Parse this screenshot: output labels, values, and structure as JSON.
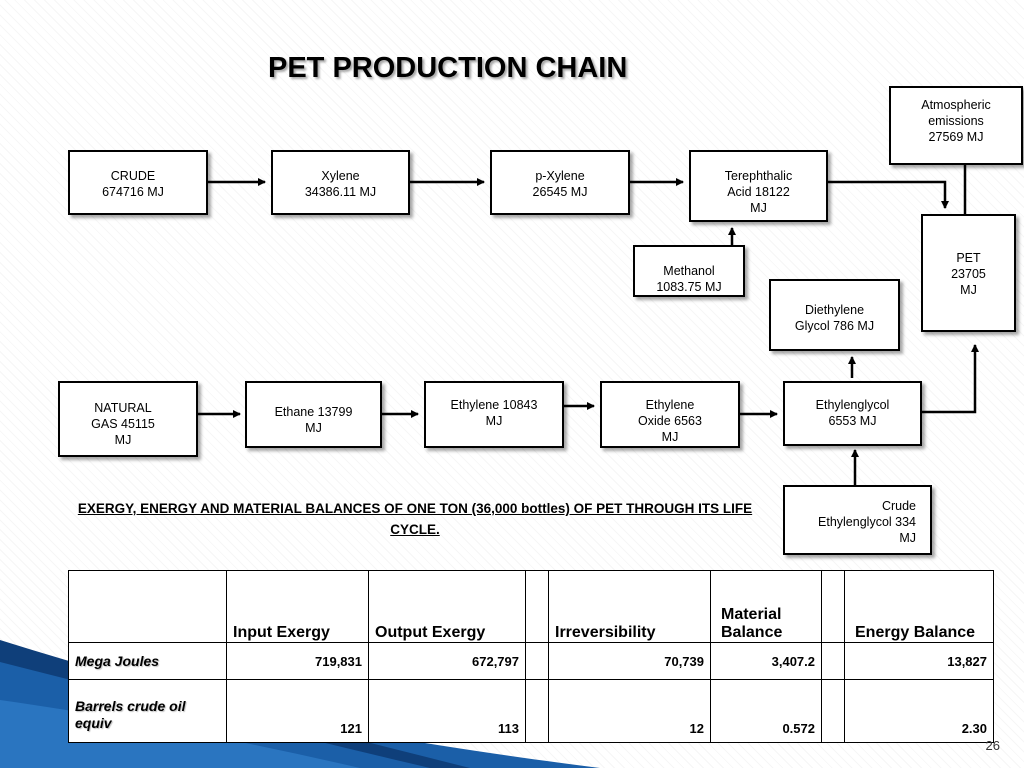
{
  "title": "PET PRODUCTION CHAIN",
  "nodes": {
    "crude": "CRUDE\n674716 MJ",
    "xylene": "Xylene\n34386.11 MJ",
    "pxylene": "p-Xylene\n26545 MJ",
    "terephthalic": "Terephthalic\nAcid 18122\nMJ",
    "atmospheric": "Atmospheric\nemissions\n27569  MJ",
    "pet": "PET\n23705\nMJ",
    "methanol": "Methanol\n1083.75 MJ",
    "diethylene": "Diethylene\nGlycol 786 MJ",
    "natural_gas": "NATURAL\nGAS 45115\nMJ",
    "ethane": "Ethane 13799\nMJ",
    "ethylene": "Ethylene 10843\nMJ",
    "ethylene_oxide": "Ethylene\nOxide 6563\nMJ",
    "ethylenglycol": "Ethylenglycol\n6553 MJ",
    "crude_ethylenglycol": "Crude\nEthylenglycol  334\nMJ"
  },
  "caption": "EXERGY, ENERGY AND MATERIAL BALANCES OF ONE TON (36,000 bottles) OF PET THROUGH ITS LIFE CYCLE.",
  "table": {
    "headers": [
      "",
      "Input Exergy",
      "Output Exergy",
      "",
      "Irreversibility",
      "Material Balance",
      "",
      "Energy Balance"
    ],
    "rows": [
      {
        "label": "Mega Joules",
        "input": "719,831",
        "output": "672,797",
        "irrev": "70,739",
        "material": "3,407.2",
        "energy": "13,827"
      },
      {
        "label": "Barrels crude oil equiv",
        "input": "121",
        "output": "113",
        "irrev": "12",
        "material": "0.572",
        "energy": "2.30"
      }
    ]
  },
  "page_number": "26",
  "colors": {
    "accent_blue": "#1b5fa8",
    "accent_dark": "#000000"
  }
}
